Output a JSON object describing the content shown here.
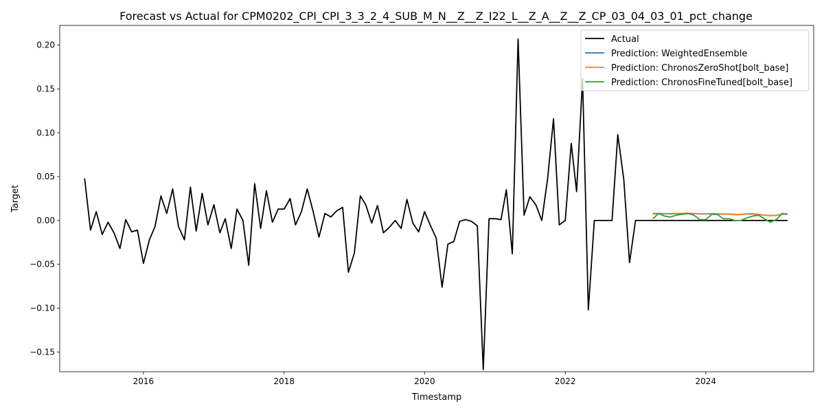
{
  "chart_data": {
    "type": "line",
    "title": "Forecast vs Actual for CPM0202_CPI_CPI_3_3_2_4_SUB_M_N__Z__Z_I22_L__Z_A__Z__Z_CP_03_04_03_01_pct_change",
    "xlabel": "Timestamp",
    "ylabel": "Target",
    "x_ticks": [
      "2016",
      "2018",
      "2020",
      "2022",
      "2024"
    ],
    "y_ticks": [
      "−0.15",
      "−0.10",
      "−0.05",
      "0.00",
      "0.05",
      "0.10",
      "0.15",
      "0.20"
    ],
    "xlim": [
      "2014-10-23",
      "2025-07-15"
    ],
    "ylim": [
      -0.1725,
      0.2225
    ],
    "grid": false,
    "legend_position": "top-right",
    "series": [
      {
        "name": "Actual",
        "color": "#000000",
        "x": [
          "2015-03-01",
          "2015-04-01",
          "2015-05-01",
          "2015-06-01",
          "2015-07-01",
          "2015-08-01",
          "2015-09-01",
          "2015-10-01",
          "2015-11-01",
          "2015-12-01",
          "2016-01-01",
          "2016-02-01",
          "2016-03-01",
          "2016-04-01",
          "2016-05-01",
          "2016-06-01",
          "2016-07-01",
          "2016-08-01",
          "2016-09-01",
          "2016-10-01",
          "2016-11-01",
          "2016-12-01",
          "2017-01-01",
          "2017-02-01",
          "2017-03-01",
          "2017-04-01",
          "2017-05-01",
          "2017-06-01",
          "2017-07-01",
          "2017-08-01",
          "2017-09-01",
          "2017-10-01",
          "2017-11-01",
          "2017-12-01",
          "2018-01-01",
          "2018-02-01",
          "2018-03-01",
          "2018-04-01",
          "2018-05-01",
          "2018-06-01",
          "2018-07-01",
          "2018-08-01",
          "2018-09-01",
          "2018-10-01",
          "2018-11-01",
          "2018-12-01",
          "2019-01-01",
          "2019-02-01",
          "2019-03-01",
          "2019-04-01",
          "2019-05-01",
          "2019-06-01",
          "2019-07-01",
          "2019-08-01",
          "2019-09-01",
          "2019-10-01",
          "2019-11-01",
          "2019-12-01",
          "2020-01-01",
          "2020-02-01",
          "2020-03-01",
          "2020-04-01",
          "2020-05-01",
          "2020-06-01",
          "2020-07-01",
          "2020-08-01",
          "2020-09-01",
          "2020-10-01",
          "2020-11-01",
          "2020-12-01",
          "2021-01-01",
          "2021-02-01",
          "2021-03-01",
          "2021-04-01",
          "2021-05-01",
          "2021-06-01",
          "2021-07-01",
          "2021-08-01",
          "2021-09-01",
          "2021-10-01",
          "2021-11-01",
          "2021-12-01",
          "2022-01-01",
          "2022-02-01",
          "2022-03-01",
          "2022-04-01",
          "2022-05-01",
          "2022-06-01",
          "2022-07-01",
          "2022-08-01",
          "2022-09-01",
          "2022-10-01",
          "2022-11-01",
          "2022-12-01",
          "2023-01-01",
          "2023-02-01",
          "2023-03-01",
          "2023-04-01",
          "2023-05-01",
          "2023-06-01",
          "2023-07-01",
          "2023-08-01",
          "2023-09-01",
          "2023-10-01",
          "2023-11-01",
          "2023-12-01",
          "2024-01-01",
          "2024-02-01",
          "2024-03-01",
          "2024-04-01",
          "2024-05-01",
          "2024-06-01",
          "2024-07-01",
          "2024-08-01",
          "2024-09-01",
          "2024-10-01",
          "2024-11-01",
          "2024-12-01",
          "2025-01-01",
          "2025-02-01",
          "2025-03-01"
        ],
        "y": [
          0.048,
          -0.011,
          0.01,
          -0.016,
          -0.002,
          -0.014,
          -0.032,
          0.001,
          -0.013,
          -0.011,
          -0.049,
          -0.022,
          -0.007,
          0.028,
          0.008,
          0.036,
          -0.007,
          -0.022,
          0.038,
          -0.012,
          0.031,
          -0.005,
          0.018,
          -0.014,
          0.002,
          -0.032,
          0.013,
          0.0,
          -0.051,
          0.042,
          -0.009,
          0.034,
          -0.002,
          0.013,
          0.013,
          0.025,
          -0.005,
          0.01,
          0.036,
          0.01,
          -0.019,
          0.008,
          0.004,
          0.011,
          0.015,
          -0.059,
          -0.037,
          0.028,
          0.018,
          -0.003,
          0.017,
          -0.014,
          -0.008,
          0.0,
          -0.009,
          0.024,
          -0.003,
          -0.013,
          0.01,
          -0.006,
          -0.02,
          -0.076,
          -0.027,
          -0.024,
          -0.001,
          0.001,
          -0.001,
          -0.006,
          -0.17,
          0.002,
          0.002,
          0.001,
          0.035,
          -0.038,
          0.207,
          0.006,
          0.027,
          0.018,
          0.0,
          0.047,
          0.116,
          -0.005,
          0.0,
          0.088,
          0.033,
          0.162,
          -0.102,
          0.0,
          0.0,
          0.0,
          0.0,
          0.098,
          0.047,
          -0.048,
          0.0,
          0.0,
          0.0,
          0.0,
          0.0,
          0.0,
          0.0,
          0.0,
          0.0,
          0.0,
          0.0,
          0.0,
          0.0,
          0.0,
          0.0,
          0.0,
          0.0,
          0.0,
          0.0,
          0.0,
          0.0,
          0.0,
          0.0,
          0.0,
          0.0,
          0.0,
          0.0
        ]
      },
      {
        "name": "Prediction: WeightedEnsemble",
        "color": "#1f77b4",
        "x": [
          "2023-04-01",
          "2023-05-01",
          "2023-06-01",
          "2023-07-01",
          "2023-08-01",
          "2023-09-01",
          "2023-10-01",
          "2023-11-01",
          "2023-12-01",
          "2024-01-01",
          "2024-02-01",
          "2024-03-01",
          "2024-04-01",
          "2024-05-01",
          "2024-06-01",
          "2024-07-01",
          "2024-08-01",
          "2024-09-01",
          "2024-10-01",
          "2024-11-01",
          "2024-12-01",
          "2025-01-01",
          "2025-02-01",
          "2025-03-01"
        ],
        "y": [
          0.0075,
          0.0078,
          0.0076,
          0.0075,
          0.0077,
          0.0078,
          0.008,
          0.0079,
          0.0074,
          0.0075,
          0.0077,
          0.0075,
          0.0073,
          0.0072,
          0.0066,
          0.0068,
          0.0074,
          0.0075,
          0.0067,
          0.0061,
          0.0055,
          0.0058,
          0.0072,
          0.0075
        ]
      },
      {
        "name": "Prediction: ChronosZeroShot[bolt_base]",
        "color": "#ff7f0e",
        "x": [
          "2023-04-01",
          "2023-05-01",
          "2023-06-01",
          "2023-07-01",
          "2023-08-01",
          "2023-09-01",
          "2023-10-01",
          "2023-11-01",
          "2023-12-01",
          "2024-01-01",
          "2024-02-01",
          "2024-03-01",
          "2024-04-01",
          "2024-05-01",
          "2024-06-01",
          "2024-07-01",
          "2024-08-01",
          "2024-09-01",
          "2024-10-01",
          "2024-11-01",
          "2024-12-01",
          "2025-01-01",
          "2025-02-01",
          "2025-03-01"
        ],
        "y": [
          0.008,
          0.0082,
          0.0079,
          0.0078,
          0.008,
          0.0082,
          0.0083,
          0.0081,
          0.0076,
          0.0077,
          0.0079,
          0.0077,
          0.0075,
          0.0074,
          0.0068,
          0.007,
          0.0076,
          0.0078,
          0.007,
          0.0062,
          0.0056,
          0.0059,
          0.0074,
          0.0077
        ]
      },
      {
        "name": "Prediction: ChronosFineTuned[bolt_base]",
        "color": "#2ca02c",
        "x": [
          "2023-04-01",
          "2023-05-01",
          "2023-06-01",
          "2023-07-01",
          "2023-08-01",
          "2023-09-01",
          "2023-10-01",
          "2023-11-01",
          "2023-12-01",
          "2024-01-01",
          "2024-02-01",
          "2024-03-01",
          "2024-04-01",
          "2024-05-01",
          "2024-06-01",
          "2024-07-01",
          "2024-08-01",
          "2024-09-01",
          "2024-10-01",
          "2024-11-01",
          "2024-12-01",
          "2025-01-01",
          "2025-02-01",
          "2025-03-01"
        ],
        "y": [
          0.002,
          0.008,
          0.005,
          0.004,
          0.006,
          0.007,
          0.008,
          0.006,
          0.001,
          0.001,
          0.007,
          0.007,
          0.002,
          0.002,
          0.0,
          0.0,
          0.003,
          0.005,
          0.006,
          0.002,
          -0.002,
          0.001,
          0.008,
          0.007
        ]
      }
    ]
  }
}
